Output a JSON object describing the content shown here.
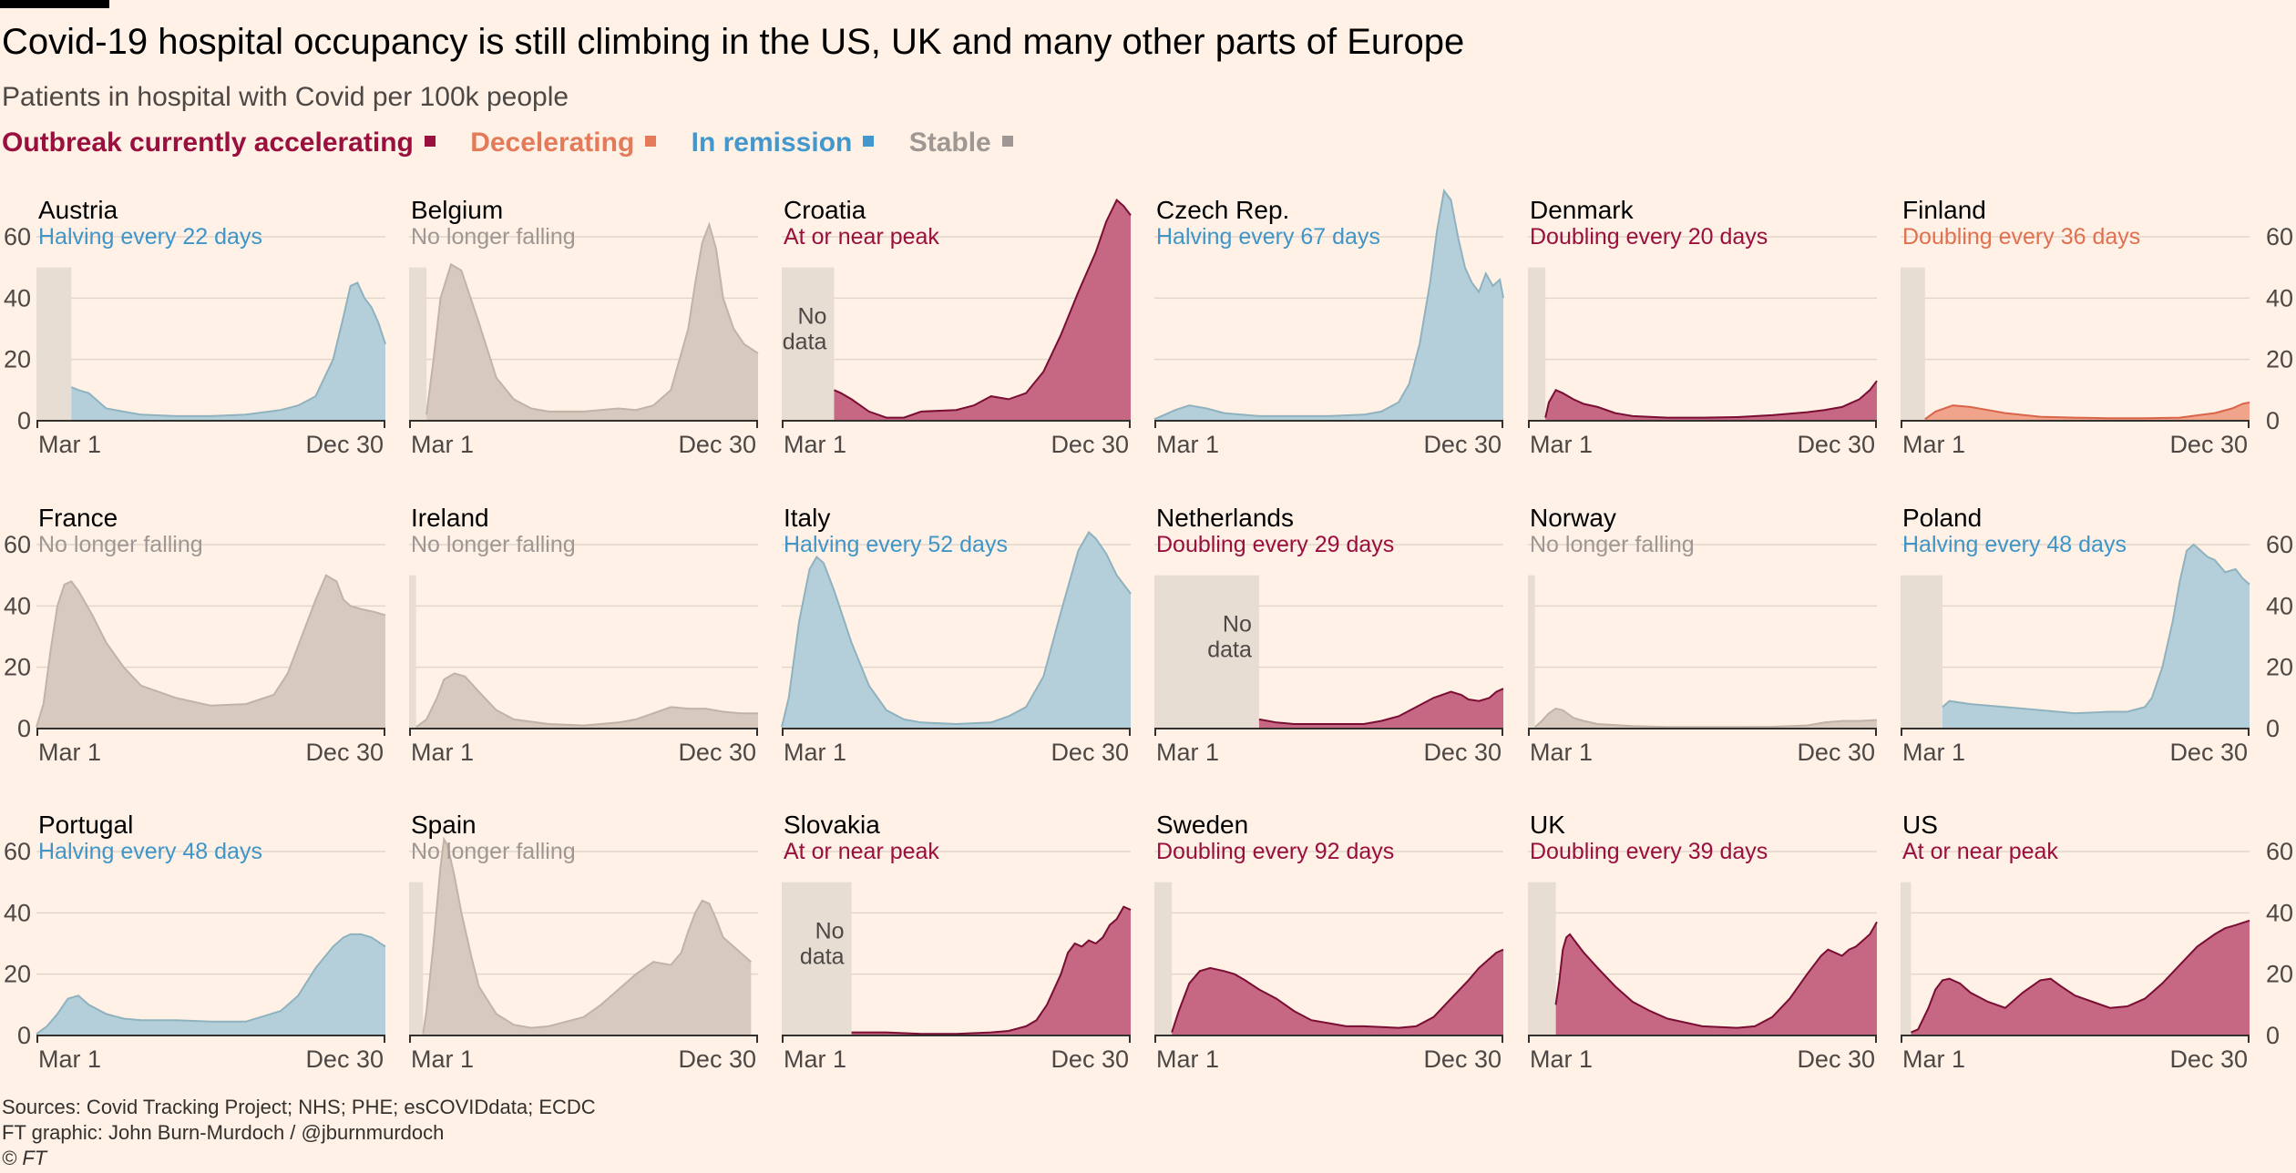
{
  "title": "Covid-19 hospital occupancy is still climbing in the US, UK and many other parts of Europe",
  "subtitle": "Patients in hospital with Covid per 100k people",
  "legend": [
    {
      "label": "Outbreak currently accelerating",
      "color": "#990f3d"
    },
    {
      "label": "Decelerating",
      "color": "#e37b5a"
    },
    {
      "label": "In remission",
      "color": "#4497cc"
    },
    {
      "label": "Stable",
      "color": "#9e9793"
    }
  ],
  "colors": {
    "accelerating": {
      "fill": "#c66883",
      "line": "#7a0d33",
      "text": "#990f3d"
    },
    "decelerating": {
      "fill": "#f0a48b",
      "line": "#d9644a",
      "text": "#e0704f"
    },
    "remission": {
      "fill": "#b4cfd9",
      "line": "#8fb2c0",
      "text": "#3f95c8"
    },
    "stable": {
      "fill": "#d7c9be",
      "line": "#c2b3a8",
      "text": "#9e9793"
    },
    "nodata": "#e8ddd2",
    "grid": "#e0d6cd",
    "axis": "#33302e"
  },
  "sources": {
    "line1": "Sources: Covid Tracking Project; NHS; PHE; esCOVIDdata; ECDC",
    "line2": "FT graphic: John Burn-Murdoch / @jburnmurdoch",
    "line3": "© FT"
  },
  "chart_data": {
    "type": "area",
    "ylim": [
      0,
      60
    ],
    "yticks": [
      0,
      20,
      40,
      60
    ],
    "x_range": [
      "Mar 1",
      "Dec 30"
    ],
    "xtick_labels": [
      "Mar 1",
      "Dec 30"
    ],
    "grid": true,
    "no_data_label": "No data",
    "panels": [
      {
        "name": "Austria",
        "status_label": "Halving every 22 days",
        "status": "remission",
        "no_data_until": 0.1,
        "x": [
          0.1,
          0.12,
          0.15,
          0.2,
          0.3,
          0.4,
          0.5,
          0.6,
          0.7,
          0.75,
          0.8,
          0.85,
          0.88,
          0.9,
          0.92,
          0.94,
          0.96,
          0.98,
          1.0
        ],
        "values": [
          11,
          10,
          9,
          4,
          2,
          1.5,
          1.5,
          2,
          3.5,
          5,
          8,
          20,
          34,
          44,
          45,
          40,
          37,
          32,
          25
        ]
      },
      {
        "name": "Belgium",
        "status_label": "No longer falling",
        "status": "stable",
        "no_data_until": 0.05,
        "x": [
          0.05,
          0.07,
          0.09,
          0.12,
          0.15,
          0.2,
          0.25,
          0.3,
          0.35,
          0.4,
          0.5,
          0.6,
          0.65,
          0.7,
          0.75,
          0.8,
          0.82,
          0.84,
          0.86,
          0.88,
          0.9,
          0.93,
          0.96,
          1.0
        ],
        "values": [
          2,
          20,
          40,
          51,
          49,
          32,
          14,
          7,
          4,
          3,
          3,
          4,
          3.5,
          5,
          10,
          30,
          45,
          58,
          64,
          56,
          40,
          30,
          25,
          22
        ]
      },
      {
        "name": "Croatia",
        "status_label": "At or near peak",
        "status": "accelerating",
        "no_data_until": 0.15,
        "x": [
          0.15,
          0.17,
          0.2,
          0.25,
          0.3,
          0.35,
          0.4,
          0.5,
          0.55,
          0.6,
          0.65,
          0.7,
          0.75,
          0.8,
          0.85,
          0.9,
          0.93,
          0.96,
          0.98,
          1.0
        ],
        "values": [
          10,
          9,
          7,
          3,
          1,
          1,
          3,
          3.5,
          5,
          8,
          7,
          9,
          16,
          28,
          42,
          55,
          65,
          72,
          70,
          67
        ]
      },
      {
        "name": "Czech Rep.",
        "status_label": "Halving every 67 days",
        "status": "remission",
        "no_data_until": 0,
        "x": [
          0,
          0.03,
          0.06,
          0.1,
          0.15,
          0.2,
          0.3,
          0.5,
          0.6,
          0.65,
          0.7,
          0.73,
          0.76,
          0.79,
          0.81,
          0.83,
          0.85,
          0.87,
          0.89,
          0.91,
          0.93,
          0.95,
          0.97,
          0.99,
          1.0
        ],
        "values": [
          0.5,
          2,
          3.5,
          5,
          4,
          2.5,
          1.5,
          1.5,
          2,
          3,
          6,
          12,
          25,
          45,
          62,
          75,
          72,
          60,
          50,
          45,
          42,
          48,
          44,
          46,
          40
        ]
      },
      {
        "name": "Denmark",
        "status_label": "Doubling every 20 days",
        "status": "accelerating",
        "no_data_until": 0.05,
        "x": [
          0.05,
          0.06,
          0.08,
          0.1,
          0.13,
          0.16,
          0.2,
          0.25,
          0.3,
          0.4,
          0.5,
          0.6,
          0.7,
          0.8,
          0.85,
          0.9,
          0.95,
          0.98,
          1.0
        ],
        "values": [
          1,
          6,
          10,
          9,
          7,
          5.5,
          4.5,
          2.5,
          1.5,
          1,
          1,
          1.2,
          1.8,
          2.8,
          3.5,
          4.5,
          7,
          10,
          13
        ]
      },
      {
        "name": "Finland",
        "status_label": "Doubling every 36 days",
        "status": "decelerating",
        "no_data_until": 0.07,
        "x": [
          0.07,
          0.1,
          0.15,
          0.2,
          0.25,
          0.3,
          0.4,
          0.5,
          0.6,
          0.7,
          0.8,
          0.9,
          0.95,
          0.98,
          1.0
        ],
        "values": [
          0.5,
          3,
          5,
          4.5,
          3.5,
          2.5,
          1.3,
          1,
          0.8,
          0.8,
          1,
          2.5,
          4,
          5.5,
          6
        ]
      },
      {
        "name": "France",
        "status_label": "No longer falling",
        "status": "stable",
        "no_data_until": 0,
        "x": [
          0,
          0.02,
          0.04,
          0.06,
          0.08,
          0.1,
          0.12,
          0.16,
          0.2,
          0.25,
          0.3,
          0.4,
          0.5,
          0.6,
          0.68,
          0.72,
          0.76,
          0.8,
          0.83,
          0.86,
          0.88,
          0.9,
          0.93,
          0.97,
          1.0
        ],
        "values": [
          0.5,
          8,
          25,
          40,
          47,
          48,
          45,
          37,
          28,
          20,
          14,
          10,
          7.5,
          8,
          11,
          18,
          30,
          42,
          50,
          48,
          42,
          40,
          39,
          38,
          37
        ]
      },
      {
        "name": "Ireland",
        "status_label": "No longer falling",
        "status": "stable",
        "no_data_until": 0.02,
        "x": [
          0.02,
          0.05,
          0.08,
          0.1,
          0.13,
          0.16,
          0.2,
          0.25,
          0.3,
          0.4,
          0.5,
          0.6,
          0.65,
          0.7,
          0.75,
          0.8,
          0.85,
          0.9,
          0.95,
          1.0
        ],
        "values": [
          0.5,
          3,
          10,
          16,
          18,
          17,
          12,
          6,
          3,
          1.5,
          1,
          2,
          3,
          5,
          7,
          6.5,
          6.5,
          5.5,
          5,
          5
        ]
      },
      {
        "name": "Italy",
        "status_label": "Halving every 52 days",
        "status": "remission",
        "no_data_until": 0,
        "x": [
          0,
          0.02,
          0.05,
          0.08,
          0.1,
          0.12,
          0.15,
          0.2,
          0.25,
          0.3,
          0.35,
          0.4,
          0.5,
          0.6,
          0.65,
          0.7,
          0.75,
          0.8,
          0.85,
          0.88,
          0.9,
          0.93,
          0.96,
          1.0
        ],
        "values": [
          0.5,
          10,
          35,
          52,
          56,
          54,
          45,
          28,
          14,
          6,
          3,
          2,
          1.5,
          2,
          4,
          7,
          17,
          38,
          58,
          64,
          62,
          57,
          50,
          44
        ]
      },
      {
        "name": "Netherlands",
        "status_label": "Doubling every 29 days",
        "status": "accelerating",
        "no_data_until": 0.3,
        "x": [
          0.3,
          0.35,
          0.4,
          0.5,
          0.6,
          0.65,
          0.7,
          0.75,
          0.8,
          0.85,
          0.88,
          0.9,
          0.93,
          0.96,
          0.98,
          1.0
        ],
        "values": [
          3,
          2,
          1.5,
          1.5,
          1.5,
          2.5,
          4,
          7,
          10,
          12,
          11,
          9.5,
          9,
          10,
          12,
          13
        ]
      },
      {
        "name": "Norway",
        "status_label": "No longer falling",
        "status": "stable",
        "no_data_until": 0.02,
        "x": [
          0.02,
          0.04,
          0.06,
          0.08,
          0.1,
          0.13,
          0.16,
          0.2,
          0.3,
          0.4,
          0.5,
          0.6,
          0.7,
          0.8,
          0.85,
          0.9,
          0.95,
          1.0
        ],
        "values": [
          0.5,
          2.5,
          5,
          6.5,
          6,
          3.5,
          2.5,
          1.5,
          0.8,
          0.5,
          0.5,
          0.5,
          0.6,
          1,
          2,
          2.5,
          2.5,
          2.8
        ]
      },
      {
        "name": "Poland",
        "status_label": "Halving every 48 days",
        "status": "remission",
        "no_data_until": 0.12,
        "x": [
          0.12,
          0.14,
          0.2,
          0.3,
          0.4,
          0.5,
          0.6,
          0.65,
          0.7,
          0.72,
          0.75,
          0.78,
          0.8,
          0.82,
          0.84,
          0.86,
          0.88,
          0.9,
          0.93,
          0.96,
          0.98,
          1.0
        ],
        "values": [
          7,
          9,
          8,
          7,
          6,
          5,
          5.5,
          5.5,
          7,
          10,
          20,
          35,
          48,
          58,
          60,
          58,
          56,
          55,
          51,
          52,
          49,
          47
        ]
      },
      {
        "name": "Portugal",
        "status_label": "Halving every 48 days",
        "status": "remission",
        "no_data_until": 0,
        "x": [
          0,
          0.03,
          0.06,
          0.09,
          0.12,
          0.15,
          0.2,
          0.25,
          0.3,
          0.4,
          0.5,
          0.6,
          0.7,
          0.75,
          0.8,
          0.85,
          0.88,
          0.9,
          0.93,
          0.96,
          1.0
        ],
        "values": [
          0.5,
          3,
          7,
          12,
          13,
          10,
          7,
          5.5,
          5,
          5,
          4.5,
          4.5,
          8,
          13,
          22,
          29,
          32,
          33,
          33,
          32,
          29
        ]
      },
      {
        "name": "Spain",
        "status_label": "No longer falling",
        "status": "stable",
        "no_data_until": 0.04,
        "x": [
          0.04,
          0.05,
          0.07,
          0.09,
          0.1,
          0.11,
          0.13,
          0.15,
          0.18,
          0.2,
          0.25,
          0.3,
          0.35,
          0.4,
          0.5,
          0.55,
          0.6,
          0.65,
          0.7,
          0.75,
          0.78,
          0.8,
          0.82,
          0.84,
          0.86,
          0.88,
          0.9,
          0.93,
          0.96,
          0.98
        ],
        "values": [
          0.5,
          8,
          30,
          55,
          64,
          62,
          52,
          40,
          25,
          16,
          7,
          3.5,
          2.5,
          3,
          6,
          10,
          15,
          20,
          24,
          23,
          27,
          34,
          40,
          44,
          43,
          38,
          32,
          29,
          26,
          24
        ]
      },
      {
        "name": "Slovakia",
        "status_label": "At or near peak",
        "status": "accelerating",
        "no_data_until": 0.2,
        "x": [
          0.2,
          0.3,
          0.4,
          0.5,
          0.6,
          0.65,
          0.7,
          0.73,
          0.76,
          0.8,
          0.82,
          0.84,
          0.86,
          0.88,
          0.9,
          0.92,
          0.94,
          0.96,
          0.98,
          1.0
        ],
        "values": [
          1,
          1,
          0.5,
          0.5,
          1,
          1.5,
          3,
          5,
          10,
          20,
          27,
          30,
          29,
          31,
          30,
          32,
          36,
          38,
          42,
          41
        ]
      },
      {
        "name": "Sweden",
        "status_label": "Doubling every 92 days",
        "status": "accelerating",
        "no_data_until": 0.05,
        "x": [
          0.05,
          0.07,
          0.1,
          0.13,
          0.16,
          0.2,
          0.23,
          0.26,
          0.3,
          0.35,
          0.4,
          0.45,
          0.5,
          0.55,
          0.6,
          0.7,
          0.75,
          0.8,
          0.85,
          0.9,
          0.93,
          0.96,
          0.98,
          1.0
        ],
        "values": [
          1,
          8,
          17,
          21,
          22,
          21,
          20,
          18,
          15,
          12,
          8,
          5,
          4,
          3,
          3,
          2.5,
          3,
          6,
          12,
          18,
          22,
          25,
          27,
          28
        ]
      },
      {
        "name": "UK",
        "status_label": "Doubling every 39 days",
        "status": "accelerating",
        "no_data_until": 0.08,
        "x": [
          0.08,
          0.09,
          0.1,
          0.11,
          0.12,
          0.14,
          0.16,
          0.2,
          0.25,
          0.3,
          0.35,
          0.4,
          0.5,
          0.6,
          0.65,
          0.7,
          0.75,
          0.8,
          0.84,
          0.86,
          0.88,
          0.9,
          0.92,
          0.94,
          0.96,
          0.98,
          1.0
        ],
        "values": [
          10,
          18,
          28,
          32,
          33,
          30,
          27,
          22,
          16,
          11,
          8,
          5.5,
          3,
          2.5,
          3,
          6,
          12,
          20,
          26,
          28,
          27,
          26,
          28,
          29,
          31,
          33,
          37
        ]
      },
      {
        "name": "US",
        "status_label": "At or near peak",
        "status": "accelerating",
        "no_data_until": 0.03,
        "x": [
          0.03,
          0.05,
          0.08,
          0.1,
          0.12,
          0.14,
          0.17,
          0.2,
          0.25,
          0.3,
          0.35,
          0.4,
          0.43,
          0.46,
          0.5,
          0.55,
          0.6,
          0.65,
          0.7,
          0.75,
          0.8,
          0.85,
          0.9,
          0.93,
          0.96,
          1.0
        ],
        "values": [
          1,
          2,
          9,
          15,
          18,
          18.5,
          17,
          14,
          11,
          9,
          14,
          18,
          18.5,
          16,
          13,
          11,
          9,
          9.5,
          12,
          17,
          23,
          29,
          33,
          35,
          36,
          37.5
        ]
      }
    ]
  }
}
